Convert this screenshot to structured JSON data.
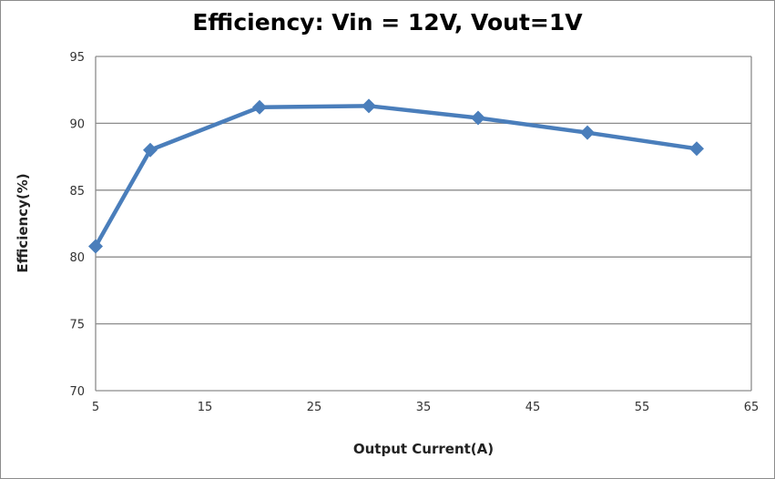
{
  "chart_data": {
    "type": "line",
    "title": "Efficiency: Vin = 12V, Vout=1V",
    "xlabel": "Output Current(A)",
    "ylabel": "Efficiency(%)",
    "xlim": [
      5,
      65
    ],
    "ylim": [
      70,
      95
    ],
    "xticks": [
      5,
      15,
      25,
      35,
      45,
      55,
      65
    ],
    "yticks": [
      70,
      75,
      80,
      85,
      90,
      95
    ],
    "grid": "horizontal",
    "legend": "none",
    "series": [
      {
        "name": "Efficiency",
        "color": "#4a7ebb",
        "marker": "diamond",
        "x": [
          5,
          10,
          20,
          30,
          40,
          50,
          60
        ],
        "y": [
          80.8,
          88.0,
          91.2,
          91.3,
          90.4,
          89.3,
          88.1
        ]
      }
    ]
  }
}
